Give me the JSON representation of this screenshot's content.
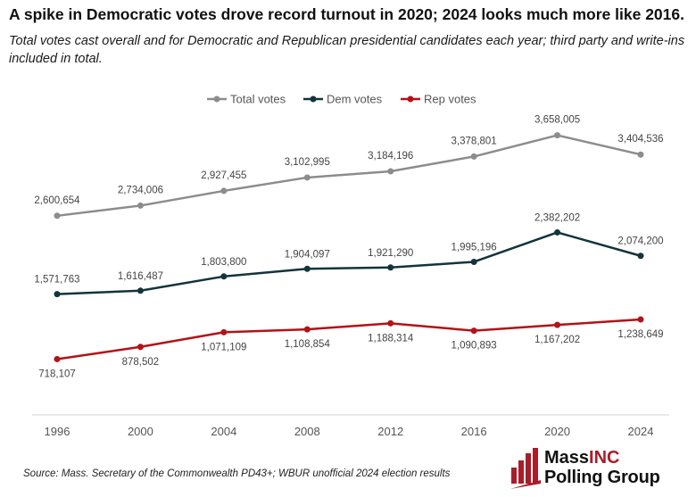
{
  "title": "A spike in Democratic votes drove record turnout in 2020; 2024 looks much more like 2016.",
  "subtitle": "Total votes cast overall and for Democratic and Republican presidential candidates each year; third party and write-ins included in total.",
  "source": "Source: Mass. Secretary of the Commonwealth PD43+; WBUR unofficial 2024 election results",
  "logo": {
    "line1_a": "Mass",
    "line1_b": "INC",
    "line2": "Polling Group",
    "accent_color": "#a81d2a"
  },
  "chart_data": {
    "type": "line",
    "categories": [
      "1996",
      "2000",
      "2004",
      "2008",
      "2012",
      "2016",
      "2020",
      "2024"
    ],
    "series": [
      {
        "name": "Total votes",
        "color": "#8c8c8c",
        "values": [
          2600654,
          2734006,
          2927455,
          3102995,
          3184196,
          3378801,
          3658005,
          3404536
        ],
        "labels": [
          "2,600,654",
          "2,734,006",
          "2,927,455",
          "3,102,995",
          "3,184,196",
          "3,378,801",
          "3,658,005",
          "3,404,536"
        ]
      },
      {
        "name": "Dem votes",
        "color": "#13343b",
        "values": [
          1571763,
          1616487,
          1803800,
          1904097,
          1921290,
          1995196,
          2382202,
          2074200
        ],
        "labels": [
          "1,571,763",
          "1,616,487",
          "1,803,800",
          "1,904,097",
          "1,921,290",
          "1,995,196",
          "2,382,202",
          "2,074,200"
        ]
      },
      {
        "name": "Rep votes",
        "color": "#b31217",
        "values": [
          718107,
          878502,
          1071109,
          1108854,
          1188314,
          1090893,
          1167202,
          1238649
        ],
        "labels": [
          "718,107",
          "878,502",
          "1,071,109",
          "1,108,854",
          "1,188,314",
          "1,090,893",
          "1,167,202",
          "1,238,649"
        ]
      }
    ],
    "ylim": [
      0,
      4000000
    ],
    "legend": "top-center",
    "grid": false
  }
}
